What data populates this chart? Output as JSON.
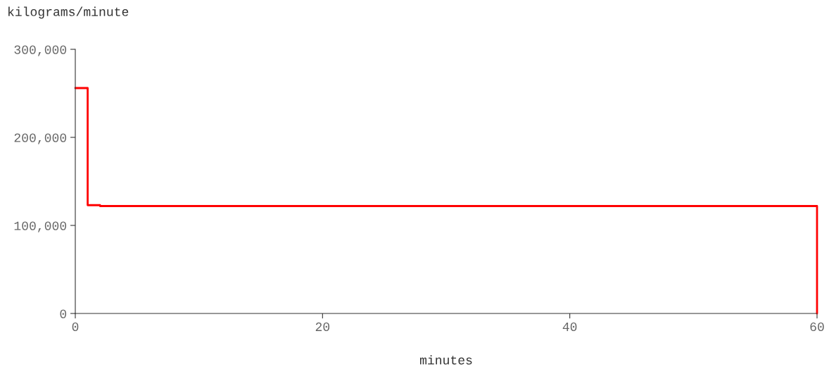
{
  "chart_data": {
    "type": "step",
    "xlabel": "minutes",
    "ylabel": "kilograms/minute",
    "x": [
      0,
      1,
      2,
      60
    ],
    "series": [
      {
        "color": "#ff0000",
        "values": [
          256000,
          123000,
          122000,
          0
        ]
      }
    ],
    "xlim": [
      0,
      60
    ],
    "xticks": [
      0,
      20,
      40,
      60
    ],
    "ylim": [
      0,
      300000
    ],
    "yticks": [
      0,
      {
        "value": 100000,
        "label": "100,000"
      },
      {
        "value": 200000,
        "label": "200,000"
      },
      {
        "value": 300000,
        "label": "300,000"
      }
    ],
    "grid": false,
    "legend": false
  }
}
